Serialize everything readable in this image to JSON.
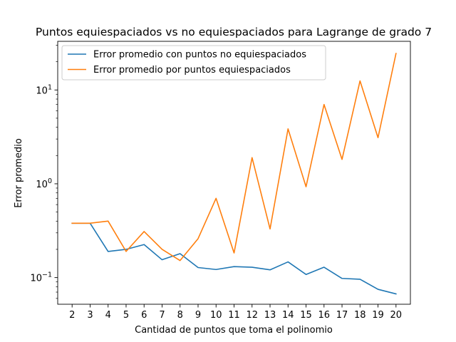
{
  "chart_data": {
    "type": "line",
    "title": "Puntos equiespaciados vs no equiespaciados para Lagrange de grado 7",
    "xlabel": "Cantidad de puntos que toma el polinomio",
    "ylabel": "Error promedio",
    "yscale": "log",
    "ylim": [
      0.052,
      33
    ],
    "xlim": [
      1.2,
      20.8
    ],
    "grid": false,
    "legend_position": "upper-left",
    "x": [
      2,
      3,
      4,
      5,
      6,
      7,
      8,
      9,
      10,
      11,
      12,
      13,
      14,
      15,
      16,
      17,
      18,
      19,
      20
    ],
    "x_tick_labels": [
      "2",
      "3",
      "4",
      "5",
      "6",
      "7",
      "8",
      "9",
      "10",
      "11",
      "12",
      "13",
      "14",
      "15",
      "16",
      "17",
      "18",
      "19",
      "20"
    ],
    "y_ticks": [
      {
        "value": 0.1,
        "base": "10",
        "exp": "−1"
      },
      {
        "value": 1,
        "base": "10",
        "exp": "0"
      },
      {
        "value": 10,
        "base": "10",
        "exp": "1"
      }
    ],
    "series": [
      {
        "name": "Error promedio con puntos no equiespaciados",
        "color": "#1f77b4",
        "values": [
          0.38,
          0.38,
          0.19,
          0.2,
          0.225,
          0.155,
          0.18,
          0.128,
          0.122,
          0.131,
          0.129,
          0.121,
          0.147,
          0.108,
          0.129,
          0.098,
          0.096,
          0.075,
          0.067
        ]
      },
      {
        "name": "Error promedio por puntos equiespaciados",
        "color": "#ff7f0e",
        "values": [
          0.38,
          0.38,
          0.4,
          0.19,
          0.31,
          0.2,
          0.152,
          0.26,
          0.7,
          0.183,
          1.9,
          0.33,
          3.85,
          0.93,
          7.0,
          1.82,
          12.5,
          3.1,
          24.5
        ]
      }
    ]
  }
}
